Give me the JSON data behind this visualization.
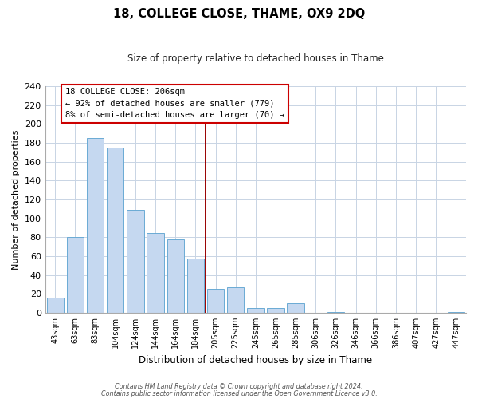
{
  "title": "18, COLLEGE CLOSE, THAME, OX9 2DQ",
  "subtitle": "Size of property relative to detached houses in Thame",
  "xlabel": "Distribution of detached houses by size in Thame",
  "ylabel": "Number of detached properties",
  "footnote1": "Contains HM Land Registry data © Crown copyright and database right 2024.",
  "footnote2": "Contains public sector information licensed under the Open Government Licence v3.0.",
  "bar_labels": [
    "43sqm",
    "63sqm",
    "83sqm",
    "104sqm",
    "124sqm",
    "144sqm",
    "164sqm",
    "184sqm",
    "205sqm",
    "225sqm",
    "245sqm",
    "265sqm",
    "285sqm",
    "306sqm",
    "326sqm",
    "346sqm",
    "366sqm",
    "386sqm",
    "407sqm",
    "427sqm",
    "447sqm"
  ],
  "bar_values": [
    16,
    80,
    185,
    175,
    109,
    84,
    78,
    57,
    25,
    27,
    5,
    5,
    10,
    0,
    1,
    0,
    0,
    0,
    0,
    0,
    1
  ],
  "bar_color": "#c5d8f0",
  "bar_edge_color": "#6aaad4",
  "vline_x_index": 8,
  "vline_color": "#990000",
  "annotation_title": "18 COLLEGE CLOSE: 206sqm",
  "annotation_line1": "← 92% of detached houses are smaller (779)",
  "annotation_line2": "8% of semi-detached houses are larger (70) →",
  "annotation_box_color": "#ffffff",
  "annotation_box_edge": "#cc0000",
  "ylim": [
    0,
    240
  ],
  "yticks": [
    0,
    20,
    40,
    60,
    80,
    100,
    120,
    140,
    160,
    180,
    200,
    220,
    240
  ],
  "fig_width": 6.0,
  "fig_height": 5.0,
  "dpi": 100
}
